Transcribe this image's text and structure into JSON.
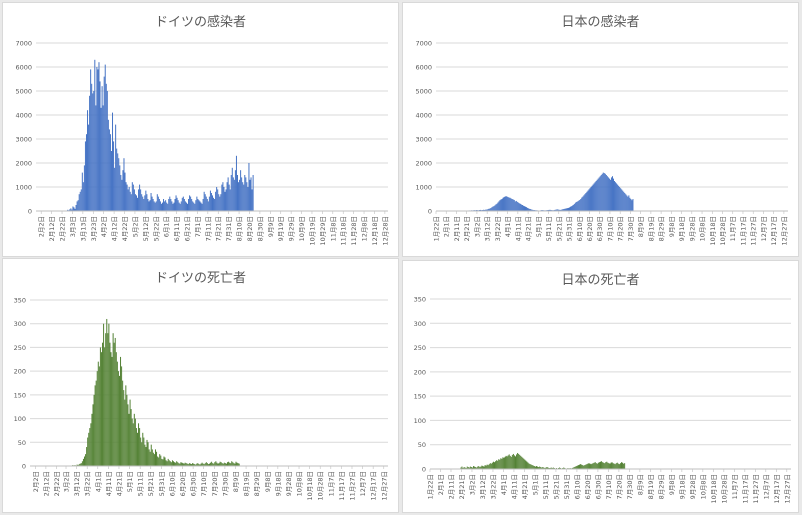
{
  "charts": [
    {
      "title": "ドイツの感染者",
      "type": "bar",
      "color": "#4472c4",
      "ylim": [
        0,
        7000
      ],
      "yticks": [
        0,
        1000,
        2000,
        3000,
        4000,
        5000,
        6000,
        7000
      ],
      "xticks": [
        "2月2日",
        "2月12日",
        "2月22日",
        "3月3日",
        "3月13日",
        "3月23日",
        "4月2日",
        "4月12日",
        "4月22日",
        "5月2日",
        "5月12日",
        "5月22日",
        "6月1日",
        "6月11日",
        "6月21日",
        "7月1日",
        "7月11日",
        "7月21日",
        "7月31日",
        "8月10日",
        "8月20日",
        "8月30日",
        "9月9日",
        "9月19日",
        "9月29日",
        "10月9日",
        "10月19日",
        "10月29日",
        "11月8日",
        "11月18日",
        "11月28日",
        "12月8日",
        "12月18日",
        "12月28日"
      ],
      "x_start": "2020-01-28",
      "x_end": "2020-12-31",
      "series": [
        {
          "start": "2020-02-25",
          "values": [
            10,
            20,
            50,
            30,
            70,
            110,
            60,
            190,
            150,
            90,
            250,
            400,
            450,
            700,
            800,
            900,
            1600,
            1200,
            1900,
            2900,
            3200,
            4200,
            3600,
            4800,
            5900,
            5300,
            4900,
            5000,
            6300,
            4400,
            6000,
            5900,
            6200,
            5400,
            4300,
            5200,
            4400,
            5600,
            6100,
            5300,
            5000,
            3800,
            3400,
            3200,
            2500,
            4100,
            2900,
            1800,
            3600,
            2600,
            2400,
            2200,
            1900,
            1500,
            1300,
            1700,
            2200,
            1600,
            1200,
            1100,
            900,
            1000,
            800,
            700,
            1200,
            1100,
            900,
            700,
            650,
            550,
            900,
            1100,
            900,
            700,
            600,
            500,
            650,
            850,
            700,
            500,
            400,
            450,
            750,
            600,
            500,
            400,
            350,
            400,
            700,
            600,
            500,
            400,
            300,
            350,
            500,
            400,
            450,
            350,
            300,
            500,
            600,
            500,
            400,
            300,
            350,
            500,
            650,
            550,
            450,
            350,
            300,
            400,
            550,
            600,
            500,
            400,
            350,
            300,
            500,
            650,
            600,
            500,
            400,
            350,
            300,
            450,
            600,
            500,
            450,
            400,
            350,
            300,
            500,
            800,
            700,
            600,
            500,
            400,
            600,
            850,
            750,
            650,
            550,
            500,
            800,
            1000,
            900,
            700,
            600,
            700,
            1100,
            1200,
            1000,
            800,
            900,
            1200,
            1400,
            1100,
            900,
            1500,
            1800,
            1400,
            1300,
            1700,
            2300,
            1500,
            1200,
            1300,
            1700,
            1400,
            1200,
            1100,
            1500,
            1400,
            1200,
            1000,
            2000,
            1300,
            1400,
            900,
            1500
          ]
        }
      ]
    },
    {
      "title": "日本の感染者",
      "type": "bar",
      "color": "#4472c4",
      "ylim": [
        0,
        7000
      ],
      "yticks": [
        0,
        1000,
        2000,
        3000,
        4000,
        5000,
        6000,
        7000
      ],
      "xticks": [
        "1月22日",
        "2月1日",
        "2月11日",
        "2月21日",
        "3月2日",
        "3月12日",
        "3月22日",
        "4月1日",
        "4月11日",
        "4月21日",
        "5月1日",
        "5月11日",
        "5月21日",
        "5月31日",
        "6月10日",
        "6月20日",
        "6月30日",
        "7月10日",
        "7月20日",
        "7月30日",
        "8月9日",
        "8月19日",
        "8月29日",
        "9月8日",
        "9月18日",
        "9月28日",
        "10月8日",
        "10月18日",
        "10月28日",
        "11月7日",
        "11月17日",
        "11月27日",
        "12月7日",
        "12月17日",
        "12月27日"
      ],
      "x_start": "2020-01-22",
      "x_end": "2020-12-31",
      "series": [
        {
          "start": "2020-02-14",
          "values": [
            5,
            8,
            5,
            10,
            10,
            12,
            15,
            20,
            15,
            25,
            20,
            30,
            25,
            30,
            35,
            30,
            40,
            35,
            30,
            40,
            45,
            35,
            40,
            50,
            45,
            55,
            60,
            70,
            90,
            100,
            120,
            150,
            180,
            200,
            230,
            270,
            300,
            350,
            400,
            450,
            480,
            500,
            550,
            580,
            600,
            620,
            600,
            580,
            560,
            550,
            520,
            500,
            480,
            460,
            400,
            420,
            380,
            350,
            320,
            300,
            270,
            250,
            220,
            200,
            180,
            160,
            130,
            110,
            90,
            80,
            60,
            50,
            40,
            40,
            30,
            30,
            25,
            20,
            20,
            30,
            40,
            35,
            30,
            25,
            30,
            35,
            40,
            45,
            50,
            40,
            35,
            30,
            40,
            50,
            60,
            70,
            60,
            50,
            45,
            55,
            70,
            80,
            90,
            100,
            110,
            120,
            130,
            150,
            180,
            200,
            230,
            260,
            300,
            350,
            380,
            400,
            430,
            460,
            500,
            560,
            600,
            650,
            700,
            750,
            800,
            850,
            900,
            950,
            1000,
            1050,
            1100,
            1150,
            1200,
            1250,
            1300,
            1350,
            1400,
            1450,
            1500,
            1550,
            1600,
            1580,
            1550,
            1500,
            1450,
            1400,
            1350,
            1300,
            1400,
            1450,
            1350,
            1250,
            1200,
            1150,
            1100,
            1050,
            1000,
            950,
            900,
            850,
            800,
            750,
            700,
            650,
            600,
            650,
            550,
            500,
            450,
            500
          ]
        }
      ]
    },
    {
      "title": "ドイツの死亡者",
      "type": "bar",
      "color": "#548235",
      "ylim": [
        0,
        350
      ],
      "yticks": [
        0,
        50,
        100,
        150,
        200,
        250,
        300,
        350
      ],
      "xticks": [
        "2月2日",
        "2月12日",
        "2月22日",
        "3月2日",
        "3月12日",
        "3月22日",
        "4月1日",
        "4月11日",
        "4月21日",
        "5月1日",
        "5月11日",
        "5月21日",
        "5月31日",
        "6月10日",
        "6月20日",
        "6月30日",
        "7月10日",
        "7月20日",
        "7月30日",
        "8月9日",
        "8月19日",
        "8月29日",
        "9月8日",
        "9月18日",
        "9月28日",
        "10月8日",
        "10月18日",
        "10月28日",
        "11月7日",
        "11月17日",
        "11月27日",
        "12月7日",
        "12月17日",
        "12月27日"
      ],
      "x_start": "2020-01-28",
      "x_end": "2020-12-31",
      "series": [
        {
          "start": "2020-03-08",
          "values": [
            2,
            0,
            2,
            1,
            3,
            2,
            4,
            5,
            6,
            10,
            15,
            20,
            25,
            40,
            60,
            70,
            80,
            90,
            110,
            130,
            150,
            170,
            180,
            200,
            220,
            210,
            250,
            240,
            260,
            300,
            250,
            280,
            310,
            280,
            300,
            260,
            240,
            230,
            280,
            260,
            270,
            240,
            220,
            200,
            190,
            230,
            210,
            180,
            160,
            140,
            170,
            150,
            130,
            110,
            140,
            120,
            100,
            90,
            110,
            100,
            80,
            70,
            90,
            80,
            60,
            50,
            70,
            60,
            45,
            40,
            55,
            50,
            35,
            30,
            45,
            35,
            28,
            25,
            35,
            30,
            20,
            18,
            25,
            22,
            15,
            14,
            20,
            18,
            12,
            10,
            15,
            12,
            10,
            8,
            12,
            10,
            8,
            7,
            10,
            8,
            6,
            5,
            8,
            7,
            6,
            5,
            7,
            6,
            5,
            4,
            6,
            5,
            4,
            6,
            5,
            4,
            3,
            5,
            6,
            4,
            3,
            5,
            7,
            5,
            4,
            6,
            8,
            6,
            4,
            5,
            7,
            9,
            6,
            5,
            8,
            10,
            7,
            5,
            6,
            9,
            8,
            6,
            5,
            7,
            6,
            5,
            8,
            9,
            7,
            6,
            10,
            8,
            6,
            5,
            9,
            7,
            6,
            5
          ]
        }
      ]
    },
    {
      "title": "日本の死亡者",
      "type": "bar",
      "color": "#548235",
      "ylim": [
        0,
        350
      ],
      "yticks": [
        0,
        50,
        100,
        150,
        200,
        250,
        300,
        350
      ],
      "xticks": [
        "1月22日",
        "2月1日",
        "2月11日",
        "2月21日",
        "3月2日",
        "3月12日",
        "3月22日",
        "4月1日",
        "4月11日",
        "4月21日",
        "5月1日",
        "5月11日",
        "5月21日",
        "5月31日",
        "6月10日",
        "6月20日",
        "6月30日",
        "7月10日",
        "7月20日",
        "7月30日",
        "8月9日",
        "8月19日",
        "8月29日",
        "9月8日",
        "9月18日",
        "9月28日",
        "10月8日",
        "10月18日",
        "10月28日",
        "11月7日",
        "11月17日",
        "11月27日",
        "12月7日",
        "12月17日",
        "12月27日"
      ],
      "x_start": "2020-01-22",
      "x_end": "2020-12-31",
      "series": [
        {
          "start": "2020-02-20",
          "values": [
            3,
            5,
            2,
            4,
            3,
            2,
            5,
            4,
            3,
            5,
            4,
            3,
            6,
            5,
            4,
            3,
            5,
            6,
            4,
            5,
            7,
            6,
            5,
            8,
            7,
            9,
            8,
            10,
            12,
            11,
            13,
            15,
            14,
            16,
            18,
            17,
            20,
            19,
            22,
            21,
            24,
            23,
            25,
            27,
            26,
            28,
            30,
            27,
            25,
            29,
            31,
            28,
            26,
            30,
            33,
            31,
            29,
            27,
            25,
            23,
            21,
            19,
            17,
            15,
            13,
            11,
            10,
            9,
            8,
            7,
            6,
            5,
            6,
            5,
            4,
            5,
            4,
            3,
            4,
            3,
            2,
            3,
            4,
            3,
            2,
            2,
            3,
            2,
            3,
            2,
            1,
            2,
            1,
            2,
            3,
            2,
            1,
            2,
            3,
            2,
            1,
            1,
            2,
            1,
            2,
            1,
            2,
            3,
            4,
            5,
            6,
            7,
            8,
            9,
            10,
            9,
            8,
            7,
            8,
            9,
            10,
            11,
            12,
            11,
            10,
            11,
            12,
            13,
            14,
            12,
            11,
            13,
            14,
            15,
            16,
            14,
            13,
            12,
            14,
            15,
            13,
            12,
            11,
            13,
            14,
            12,
            11,
            10,
            12,
            13,
            11,
            10,
            12,
            14,
            13,
            11,
            12
          ]
        }
      ]
    }
  ]
}
